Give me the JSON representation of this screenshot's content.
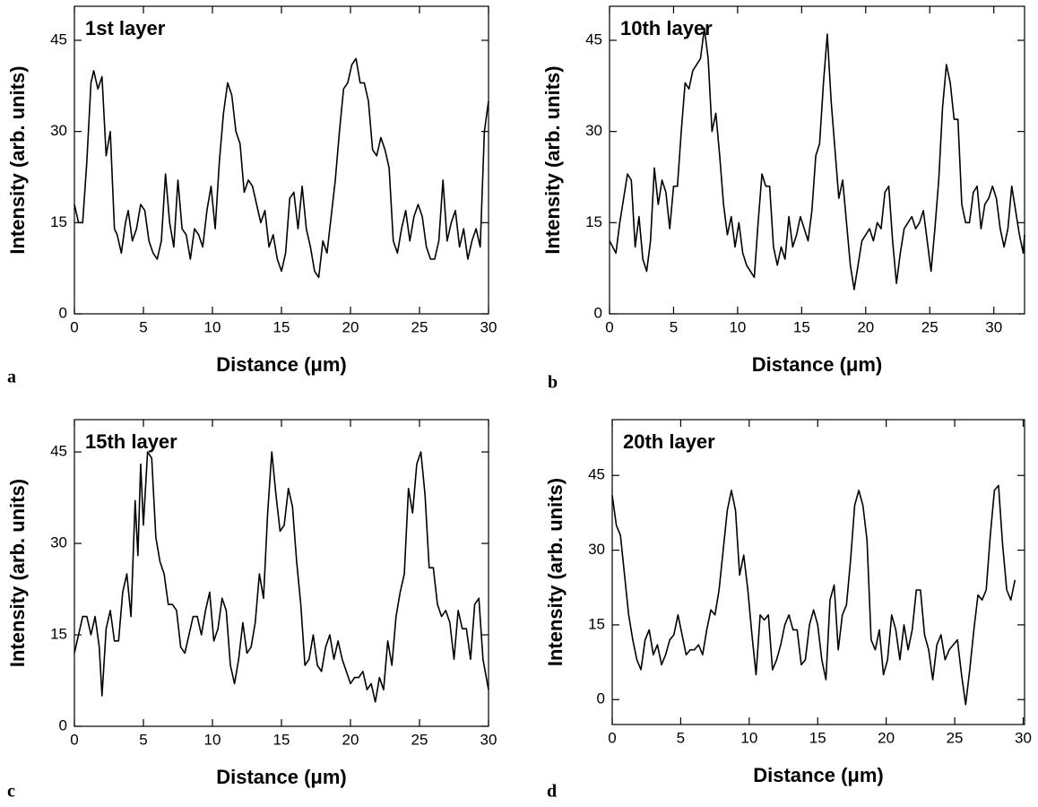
{
  "chart_data": [
    {
      "type": "line",
      "annotation": "1st layer",
      "panel_label": "a",
      "xlabel": "Distance (μm)",
      "ylabel": "Intensity (arb. units)",
      "color": "#000000",
      "xlim": [
        0,
        30
      ],
      "ylim": [
        0,
        50.6
      ],
      "xticks": [
        0,
        5,
        10,
        15,
        20,
        25,
        30
      ],
      "yticks": [
        0,
        15,
        30,
        45
      ],
      "x": [
        0,
        0.3,
        0.6,
        0.9,
        1.2,
        1.4,
        1.7,
        2.0,
        2.3,
        2.6,
        2.9,
        3.1,
        3.4,
        3.7,
        3.9,
        4.2,
        4.5,
        4.8,
        5.1,
        5.4,
        5.7,
        6.0,
        6.3,
        6.6,
        6.9,
        7.2,
        7.5,
        7.8,
        8.1,
        8.4,
        8.7,
        9.0,
        9.3,
        9.6,
        9.9,
        10.2,
        10.5,
        10.8,
        11.1,
        11.4,
        11.7,
        12.0,
        12.3,
        12.6,
        12.9,
        13.2,
        13.5,
        13.8,
        14.1,
        14.4,
        14.7,
        15.0,
        15.3,
        15.6,
        15.9,
        16.2,
        16.5,
        16.8,
        17.1,
        17.4,
        17.7,
        18.0,
        18.3,
        18.6,
        18.9,
        19.2,
        19.5,
        19.8,
        20.1,
        20.4,
        20.7,
        21.0,
        21.3,
        21.6,
        21.9,
        22.2,
        22.5,
        22.8,
        23.1,
        23.4,
        23.7,
        24.0,
        24.3,
        24.6,
        24.9,
        25.2,
        25.5,
        25.8,
        26.1,
        26.4,
        26.7,
        27.0,
        27.3,
        27.6,
        27.9,
        28.2,
        28.5,
        28.8,
        29.1,
        29.4,
        29.7,
        30.0
      ],
      "values": [
        18,
        15,
        15,
        25,
        38,
        40,
        37,
        39,
        26,
        30,
        14,
        13,
        10,
        15,
        17,
        12,
        14,
        18,
        17,
        12,
        10,
        9,
        12,
        23,
        15,
        11,
        22,
        14,
        13,
        9,
        14,
        13,
        11,
        17,
        21,
        14,
        25,
        33,
        38,
        36,
        30,
        28,
        20,
        22,
        21,
        18,
        15,
        17,
        11,
        13,
        9,
        7,
        10,
        19,
        20,
        14,
        21,
        14,
        11,
        7,
        6,
        12,
        10,
        16,
        22,
        30,
        37,
        38,
        41,
        42,
        38,
        38,
        35,
        27,
        26,
        29,
        27,
        24,
        12,
        10,
        14,
        17,
        12,
        16,
        18,
        16,
        11,
        9,
        9,
        12,
        22,
        12,
        15,
        17,
        11,
        14,
        9,
        12,
        14,
        11,
        30,
        35
      ]
    },
    {
      "type": "line",
      "annotation": "10th layer",
      "panel_label": "b",
      "xlabel": "Distance (μm)",
      "ylabel": "Intensity (arb. units)",
      "color": "#000000",
      "xlim": [
        0,
        32.4
      ],
      "ylim": [
        0,
        50.6
      ],
      "xticks": [
        0,
        5,
        10,
        15,
        20,
        25,
        30
      ],
      "yticks": [
        0,
        15,
        30,
        45
      ],
      "x": [
        0,
        0.5,
        0.8,
        1.1,
        1.4,
        1.7,
        2.0,
        2.3,
        2.6,
        2.9,
        3.2,
        3.5,
        3.8,
        4.1,
        4.4,
        4.7,
        5.0,
        5.3,
        5.6,
        5.9,
        6.2,
        6.5,
        6.8,
        7.1,
        7.4,
        7.7,
        8.0,
        8.3,
        8.6,
        8.9,
        9.2,
        9.5,
        9.8,
        10.1,
        10.4,
        10.7,
        11.0,
        11.3,
        11.6,
        11.9,
        12.2,
        12.5,
        12.8,
        13.1,
        13.4,
        13.7,
        14.0,
        14.3,
        14.6,
        14.9,
        15.2,
        15.5,
        15.8,
        16.1,
        16.4,
        16.7,
        17.0,
        17.3,
        17.6,
        17.9,
        18.2,
        18.5,
        18.8,
        19.1,
        19.4,
        19.7,
        20.0,
        20.3,
        20.6,
        20.9,
        21.2,
        21.5,
        21.8,
        22.1,
        22.4,
        22.7,
        23.0,
        23.3,
        23.6,
        23.9,
        24.2,
        24.5,
        24.8,
        25.1,
        25.4,
        25.7,
        26.0,
        26.3,
        26.6,
        26.9,
        27.2,
        27.5,
        27.8,
        28.1,
        28.4,
        28.7,
        29.0,
        29.3,
        29.6,
        29.9,
        30.2,
        30.5,
        30.8,
        31.1,
        31.4,
        31.7,
        32.0,
        32.3,
        32.4
      ],
      "values": [
        12,
        10,
        15,
        19,
        23,
        22,
        11,
        16,
        9,
        7,
        12,
        24,
        18,
        22,
        20,
        14,
        21,
        21,
        30,
        38,
        37,
        40,
        41,
        42,
        47,
        42,
        30,
        33,
        26,
        18,
        13,
        16,
        11,
        15,
        10,
        8,
        7,
        6,
        15,
        23,
        21,
        21,
        11,
        8,
        11,
        9,
        16,
        11,
        13,
        16,
        14,
        12,
        17,
        26,
        28,
        38,
        46,
        35,
        27,
        19,
        22,
        15,
        8,
        4,
        8,
        12,
        13,
        14,
        12,
        15,
        14,
        20,
        21,
        12,
        5,
        10,
        14,
        15,
        16,
        14,
        15,
        17,
        12,
        7,
        14,
        22,
        34,
        41,
        38,
        32,
        32,
        18,
        15,
        15,
        20,
        21,
        14,
        18,
        19,
        21,
        19,
        14,
        11,
        14,
        21,
        17,
        13,
        10,
        13
      ]
    },
    {
      "type": "line",
      "annotation": "15th layer",
      "panel_label": "c",
      "xlabel": "Distance (μm)",
      "ylabel": "Intensity (arb. units)",
      "color": "#000000",
      "xlim": [
        0,
        30
      ],
      "ylim": [
        0,
        50.3
      ],
      "xticks": [
        0,
        5,
        10,
        15,
        20,
        25,
        30
      ],
      "yticks": [
        0,
        15,
        30,
        45
      ],
      "x": [
        0,
        0.3,
        0.6,
        0.9,
        1.2,
        1.5,
        1.8,
        2.0,
        2.3,
        2.6,
        2.9,
        3.2,
        3.5,
        3.8,
        4.1,
        4.4,
        4.6,
        4.8,
        5.0,
        5.3,
        5.6,
        5.9,
        6.2,
        6.5,
        6.8,
        7.1,
        7.4,
        7.7,
        8.0,
        8.3,
        8.6,
        8.9,
        9.2,
        9.5,
        9.8,
        10.1,
        10.4,
        10.7,
        11.0,
        11.3,
        11.6,
        11.9,
        12.2,
        12.5,
        12.8,
        13.1,
        13.4,
        13.7,
        14.0,
        14.3,
        14.6,
        14.9,
        15.2,
        15.5,
        15.8,
        16.1,
        16.4,
        16.7,
        17.0,
        17.3,
        17.6,
        17.9,
        18.2,
        18.5,
        18.8,
        19.1,
        19.4,
        19.7,
        20.0,
        20.3,
        20.6,
        20.9,
        21.2,
        21.5,
        21.8,
        22.1,
        22.4,
        22.7,
        23.0,
        23.3,
        23.6,
        23.9,
        24.2,
        24.5,
        24.8,
        25.1,
        25.4,
        25.7,
        26.0,
        26.3,
        26.6,
        26.9,
        27.2,
        27.5,
        27.8,
        28.1,
        28.4,
        28.7,
        29.0,
        29.3,
        29.6,
        30.0
      ],
      "values": [
        12,
        15,
        18,
        18,
        15,
        18,
        13,
        5,
        16,
        19,
        14,
        14,
        22,
        25,
        18,
        37,
        28,
        43,
        33,
        45,
        44,
        31,
        27,
        25,
        20,
        20,
        19,
        13,
        12,
        15,
        18,
        18,
        15,
        19,
        22,
        14,
        16,
        21,
        19,
        10,
        7,
        11,
        17,
        12,
        13,
        17,
        25,
        21,
        35,
        45,
        38,
        32,
        33,
        39,
        36,
        27,
        20,
        10,
        11,
        15,
        10,
        9,
        13,
        15,
        11,
        14,
        11,
        9,
        7,
        8,
        8,
        9,
        6,
        7,
        4,
        8,
        6,
        14,
        10,
        18,
        22,
        25,
        39,
        35,
        43,
        45,
        38,
        26,
        26,
        20,
        18,
        19,
        17,
        11,
        19,
        16,
        16,
        11,
        20,
        21,
        11,
        6
      ]
    },
    {
      "type": "line",
      "annotation": "20th layer",
      "panel_label": "d",
      "xlabel": "Distance (μm)",
      "ylabel": "Intensity (arb. units)",
      "color": "#000000",
      "xlim": [
        0,
        30.1
      ],
      "ylim": [
        -5,
        56.2
      ],
      "xticks": [
        0,
        5,
        10,
        15,
        20,
        25,
        30
      ],
      "yticks": [
        0,
        15,
        30,
        45
      ],
      "x": [
        0,
        0.3,
        0.6,
        0.9,
        1.2,
        1.5,
        1.8,
        2.1,
        2.4,
        2.7,
        3.0,
        3.3,
        3.6,
        3.9,
        4.2,
        4.5,
        4.8,
        5.1,
        5.4,
        5.7,
        6.0,
        6.3,
        6.6,
        6.9,
        7.2,
        7.5,
        7.8,
        8.1,
        8.4,
        8.7,
        9.0,
        9.3,
        9.6,
        9.9,
        10.2,
        10.5,
        10.8,
        11.1,
        11.4,
        11.7,
        12.0,
        12.3,
        12.6,
        12.9,
        13.2,
        13.5,
        13.8,
        14.1,
        14.4,
        14.7,
        15.0,
        15.3,
        15.6,
        15.9,
        16.2,
        16.5,
        16.8,
        17.1,
        17.4,
        17.7,
        18.0,
        18.3,
        18.6,
        18.9,
        19.2,
        19.5,
        19.8,
        20.1,
        20.4,
        20.7,
        21.0,
        21.3,
        21.6,
        21.9,
        22.2,
        22.5,
        22.8,
        23.1,
        23.4,
        23.7,
        24.0,
        24.3,
        24.6,
        24.9,
        25.2,
        25.5,
        25.8,
        26.1,
        26.4,
        26.7,
        27.0,
        27.3,
        27.6,
        27.9,
        28.2,
        28.5,
        28.8,
        29.1,
        29.4
      ],
      "values": [
        41,
        35,
        33,
        25,
        17,
        12,
        8,
        6,
        12,
        14,
        9,
        11,
        7,
        9,
        12,
        13,
        17,
        13,
        9,
        10,
        10,
        11,
        9,
        14,
        18,
        17,
        22,
        30,
        38,
        42,
        38,
        25,
        29,
        22,
        13,
        5,
        17,
        16,
        17,
        6,
        8,
        11,
        15,
        17,
        14,
        14,
        7,
        8,
        15,
        18,
        15,
        8,
        4,
        20,
        23,
        10,
        17,
        19,
        28,
        39,
        42,
        39,
        32,
        12,
        10,
        14,
        5,
        8,
        17,
        14,
        8,
        15,
        10,
        14,
        22,
        22,
        13,
        10,
        4,
        11,
        13,
        8,
        10,
        11,
        12,
        5,
        -1,
        6,
        14,
        21,
        20,
        22,
        33,
        42,
        43,
        31,
        22,
        20,
        24
      ]
    }
  ]
}
